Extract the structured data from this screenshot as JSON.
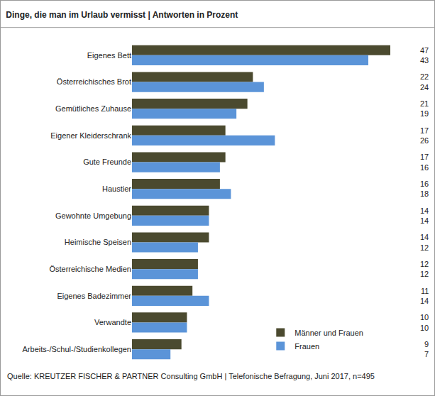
{
  "chart_data": {
    "type": "bar",
    "title": "Dinge, die man im Urlaub vermisst | Antworten in Prozent",
    "caption": "Quelle: KREUTZER FISCHER & PARTNER Consulting GmbH | Telefonische Befragung, Juni 2017, n=495",
    "orientation": "horizontal",
    "categories": [
      "Eigenes Bett",
      "Österreichisches Brot",
      "Gemütliches Zuhause",
      "Eigener Kleiderschrank",
      "Gute Freunde",
      "Haustier",
      "Gewohnte Umgebung",
      "Heimische Speisen",
      "Österreichische Medien",
      "Eigenes Badezimmer",
      "Verwandte",
      "Arbeits-/Schul-/Studienkollegen"
    ],
    "series": [
      {
        "name": "Männer und Frauen",
        "color": "#4b4a2f",
        "values": [
          47,
          22,
          21,
          17,
          17,
          16,
          14,
          14,
          12,
          11,
          10,
          9
        ]
      },
      {
        "name": "Frauen",
        "color": "#5b94d8",
        "values": [
          43,
          24,
          19,
          26,
          16,
          18,
          14,
          12,
          12,
          14,
          10,
          7
        ]
      }
    ],
    "xlim": [
      0,
      47
    ],
    "grid": false,
    "legend": "bottom right",
    "data_labels": true,
    "tick_labels": "y"
  }
}
